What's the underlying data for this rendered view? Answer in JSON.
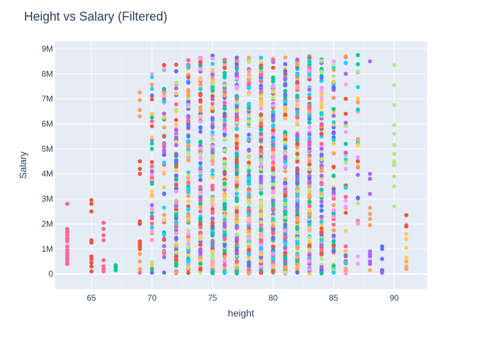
{
  "chart_data": {
    "type": "scatter",
    "title": "Height vs Salary (Filtered)",
    "xlabel": "height",
    "ylabel": "Salary",
    "xlim": [
      62,
      92.7
    ],
    "ylim": [
      -600000,
      9300000
    ],
    "x_ticks": [
      65,
      70,
      75,
      80,
      85,
      90
    ],
    "y_ticks": [
      0,
      1000000,
      2000000,
      3000000,
      4000000,
      5000000,
      6000000,
      7000000,
      8000000,
      9000000
    ],
    "y_tick_labels": [
      "0",
      "1M",
      "2M",
      "3M",
      "4M",
      "5M",
      "6M",
      "7M",
      "8M",
      "9M"
    ],
    "grid": true,
    "legend": "none",
    "plot_background": "#e5ecf6",
    "grid_color": "#ffffff",
    "palette": [
      "#636efa",
      "#ef553b",
      "#00cc96",
      "#ab63fa",
      "#ffa15a",
      "#19d3f3",
      "#ff6692",
      "#b6e880",
      "#ff97ff",
      "#fecb52"
    ],
    "columns": [
      {
        "x": 63,
        "values": [
          2800000,
          1800000,
          1700000,
          1650000,
          1550000,
          1450000,
          1400000,
          1300000,
          1100000,
          950000,
          850000,
          750000,
          650000,
          550000,
          450000,
          400000
        ],
        "colors": [
          6
        ]
      },
      {
        "x": 65,
        "values": [
          2950000,
          2800000,
          2500000,
          1350000,
          1250000,
          700000,
          600000,
          450000,
          300000,
          100000
        ],
        "colors": [
          1
        ]
      },
      {
        "x": 66,
        "values": [
          2050000,
          1800000,
          1550000,
          1350000,
          550000,
          300000,
          200000,
          100000
        ],
        "colors": [
          6
        ]
      },
      {
        "x": 67,
        "values": [
          350000,
          300000,
          250000,
          150000
        ],
        "colors": [
          2
        ]
      },
      {
        "x": 69,
        "values": [
          7250000,
          6950000,
          6550000,
          6300000,
          4500000,
          4200000,
          4000000,
          2100000,
          2000000,
          1300000,
          1200000,
          1100000,
          1000000,
          800000,
          500000,
          200000,
          50000
        ],
        "colors": [
          4,
          4,
          4,
          4,
          1,
          1,
          1,
          1,
          1,
          1,
          1,
          1,
          1,
          4,
          4,
          4,
          6
        ]
      },
      {
        "x": 70,
        "count": 42,
        "min": 50000,
        "max": 8000000,
        "extra": [
          8000000,
          5450000,
          5000000,
          4300000,
          4100000,
          3850000,
          3600000,
          3300000,
          3100000,
          2750000,
          2300000
        ]
      },
      {
        "x": 71,
        "count": 44,
        "min": 50000,
        "max": 8350000,
        "extra": [
          8350000,
          7400000,
          6900000,
          6250000,
          5200000,
          4950000,
          4450000
        ]
      },
      {
        "x": 72,
        "count": 120,
        "min": 30000,
        "max": 8600000
      },
      {
        "x": 73,
        "count": 125,
        "min": 30000,
        "max": 8600000
      },
      {
        "x": 74,
        "count": 135,
        "min": 20000,
        "max": 8650000
      },
      {
        "x": 75,
        "count": 160,
        "min": 20000,
        "max": 8750000
      },
      {
        "x": 76,
        "count": 165,
        "min": 20000,
        "max": 8700000
      },
      {
        "x": 77,
        "count": 170,
        "min": 20000,
        "max": 8700000
      },
      {
        "x": 78,
        "count": 175,
        "min": 20000,
        "max": 8750000
      },
      {
        "x": 79,
        "count": 180,
        "min": 20000,
        "max": 8750000
      },
      {
        "x": 80,
        "count": 180,
        "min": 20000,
        "max": 8750000
      },
      {
        "x": 81,
        "count": 170,
        "min": 20000,
        "max": 8700000
      },
      {
        "x": 82,
        "count": 165,
        "min": 20000,
        "max": 8700000
      },
      {
        "x": 83,
        "count": 150,
        "min": 20000,
        "max": 8750000
      },
      {
        "x": 84,
        "count": 120,
        "min": 20000,
        "max": 8700000
      },
      {
        "x": 85,
        "count": 80,
        "min": 20000,
        "max": 8500000
      },
      {
        "x": 86,
        "count": 35,
        "min": 20000,
        "max": 8700000,
        "extra": [
          8700000,
          8000000,
          7000000,
          6400000,
          5200000,
          4850000,
          4450000
        ]
      },
      {
        "x": 87,
        "count": 22,
        "min": 20000,
        "max": 8750000,
        "extra": [
          8750000,
          7000000,
          6850000,
          5150000,
          4650000,
          4500000,
          4300000,
          3050000,
          2000000
        ]
      },
      {
        "x": 88,
        "values": [
          8500000,
          4000000,
          3800000,
          3200000,
          2650000,
          2400000,
          2200000,
          1950000,
          900000,
          800000,
          700000,
          500000,
          400000,
          150000
        ],
        "colors": [
          3,
          3,
          3,
          3,
          4,
          4,
          4,
          4,
          3,
          3,
          3,
          3,
          3,
          4
        ]
      },
      {
        "x": 89,
        "values": [
          1100000,
          1000000,
          600000,
          150000,
          100000,
          50000
        ],
        "colors": [
          0,
          0,
          0,
          0,
          0,
          3
        ]
      },
      {
        "x": 90,
        "values": [
          8350000,
          7550000,
          6750000,
          5950000,
          5600000,
          5150000,
          4800000,
          4500000,
          4400000,
          4350000,
          3900000,
          3500000,
          2700000
        ],
        "colors": [
          7
        ]
      },
      {
        "x": 91,
        "values": [
          2350000,
          1950000,
          1900000,
          1600000,
          1400000,
          1050000,
          650000,
          500000,
          300000,
          200000
        ],
        "colors": [
          1,
          6,
          1,
          9,
          9,
          9,
          9,
          4,
          4,
          4
        ]
      }
    ]
  }
}
